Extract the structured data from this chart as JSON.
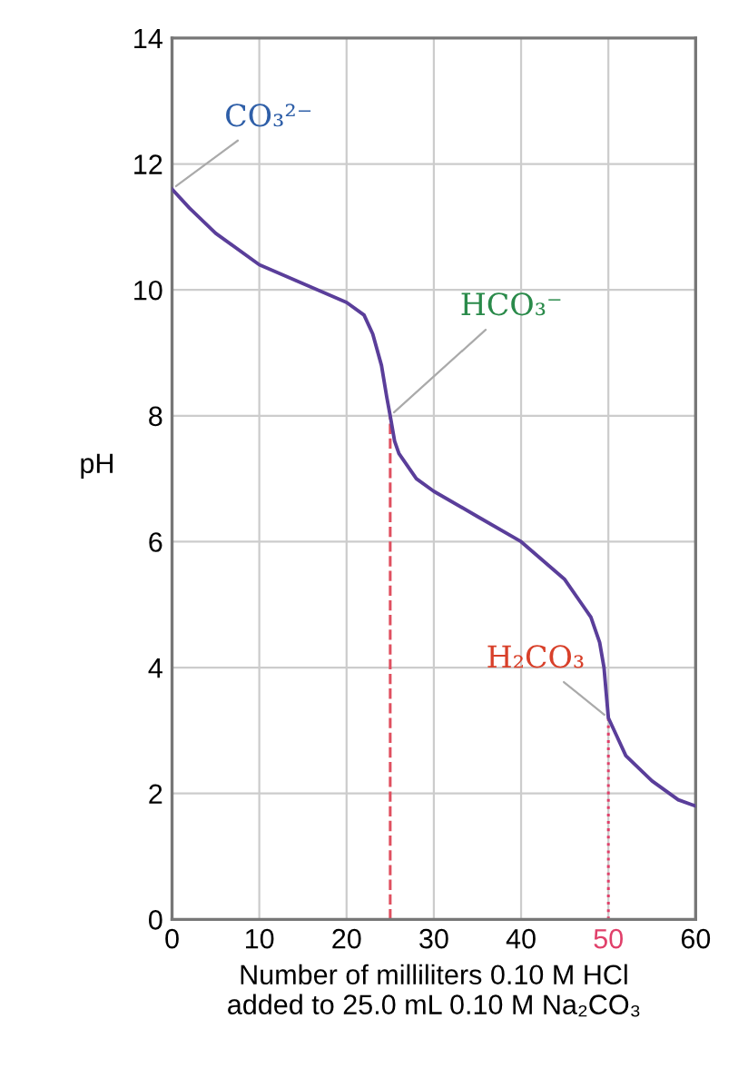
{
  "chart_data": {
    "type": "line",
    "xlabel": "Number of milliliters 0.10 M HCl\nadded to 25.0 mL 0.10 M Na₂CO₃",
    "ylabel": "pH",
    "series": [
      {
        "color": "#5a3e9a",
        "x": [
          0,
          2,
          5,
          10,
          15,
          20,
          22,
          23,
          24,
          24.6,
          25,
          25.5,
          26,
          28,
          30,
          35,
          40,
          45,
          47,
          48,
          49,
          49.5,
          50,
          51,
          52,
          55,
          58,
          60
        ],
        "values": [
          11.6,
          11.3,
          10.9,
          10.4,
          10.1,
          9.8,
          9.6,
          9.3,
          8.8,
          8.3,
          8.0,
          7.6,
          7.4,
          7.0,
          6.8,
          6.4,
          6.0,
          5.4,
          5.0,
          4.8,
          4.4,
          4.0,
          3.2,
          2.9,
          2.6,
          2.2,
          1.9,
          1.8
        ]
      }
    ],
    "xlim": [
      0,
      60
    ],
    "ylim": [
      0,
      14
    ],
    "xticks": [
      0,
      10,
      20,
      30,
      40,
      50,
      60
    ],
    "yticks": [
      0,
      2,
      4,
      6,
      8,
      10,
      12,
      14
    ],
    "grid": true,
    "marker": "none",
    "line_style": "solid",
    "ref_lines": [
      {
        "axis": "x",
        "value": 25,
        "color": "#e05060",
        "line_style": "dashed"
      },
      {
        "axis": "x",
        "value": 50,
        "color": "#e0406a",
        "line_style": "dotted"
      }
    ],
    "annotations": [
      {
        "text": "CO₃²⁻",
        "x": 0,
        "y": 11.6
      },
      {
        "text": "HCO₃⁻",
        "x": 25,
        "y": 8.0
      },
      {
        "text": "H₂CO₃",
        "x": 50,
        "y": 3.2
      }
    ]
  }
}
